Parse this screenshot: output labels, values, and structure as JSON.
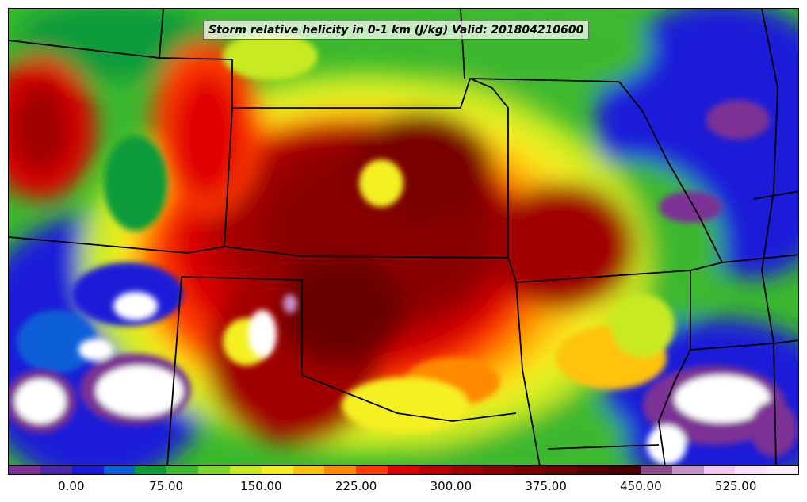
{
  "title": "Storm relative helicity in 0-1 km (J/kg) Valid: 201804210600",
  "colorbar": {
    "colors": [
      "#7b3294",
      "#4b2aa8",
      "#1a1ad8",
      "#0b5fd8",
      "#0a9b3a",
      "#3cb82e",
      "#7cd62a",
      "#c8ea20",
      "#f4f020",
      "#ffc20a",
      "#ff8a00",
      "#ff3a00",
      "#e00000",
      "#c00000",
      "#a00000",
      "#8a0000",
      "#7a0000",
      "#6a0000",
      "#580000",
      "#460000",
      "#8a4a8a",
      "#c890c8",
      "#f0c8f0",
      "#ffe0ff",
      "#fff0ff"
    ],
    "tick_labels": [
      "0.00",
      "75.00",
      "150.00",
      "225.00",
      "300.00",
      "375.00",
      "450.00",
      "525.00"
    ],
    "tick_values": [
      0,
      75,
      150,
      225,
      300,
      375,
      450,
      525
    ],
    "range": [
      -50,
      575
    ],
    "step": 25
  }
}
